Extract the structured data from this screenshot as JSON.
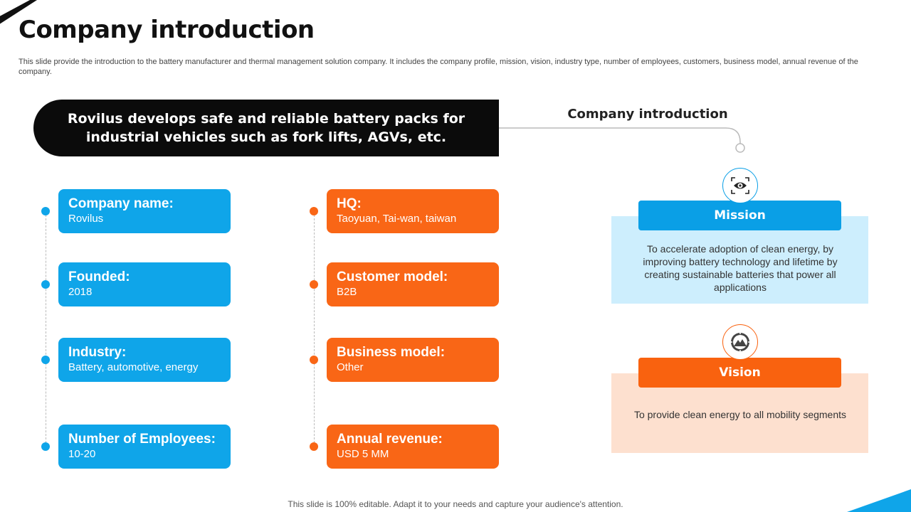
{
  "title": "Company introduction",
  "description": "This slide provide the introduction to the battery manufacturer and thermal management solution company. It includes the company profile, mission, vision, industry type, number of employees, customers, business model, annual revenue of the company.",
  "banner": "Rovilus develops safe and reliable battery packs for industrial vehicles such as fork lifts, AGVs, etc.",
  "intro_heading": "Company introduction",
  "left_cards": [
    {
      "label": "Company name:",
      "value": "Rovilus"
    },
    {
      "label": "Founded:",
      "value": "2018"
    },
    {
      "label": "Industry:",
      "value": "Battery, automotive, energy"
    },
    {
      "label": "Number of Employees:",
      "value": "10-20"
    }
  ],
  "right_cards": [
    {
      "label": "HQ:",
      "value": "Taoyuan, Tai-wan, taiwan"
    },
    {
      "label": "Customer model:",
      "value": "B2B"
    },
    {
      "label": "Business model:",
      "value": "Other"
    },
    {
      "label": "Annual revenue:",
      "value": "USD 5 MM"
    }
  ],
  "mission": {
    "title": "Mission",
    "text": "To accelerate adoption of clean energy, by improving battery technology and lifetime by creating sustainable batteries that power all applications",
    "icon": "eye-icon"
  },
  "vision": {
    "title": "Vision",
    "text": "To provide clean energy to all mobility segments",
    "icon": "mountain-target-icon"
  },
  "footer": "This slide is 100% editable. Adapt it to your needs and capture your audience's attention.",
  "colors": {
    "blue": "#0fa5e9",
    "orange": "#f96616",
    "mission_bg": "#cdeefd",
    "vision_bg": "#fde0cf",
    "mission_bar": "#0a9fe6",
    "vision_bar": "#f9620f"
  }
}
